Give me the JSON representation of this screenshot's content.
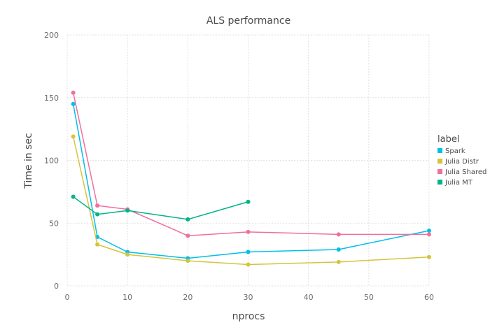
{
  "chart_data": {
    "type": "line",
    "title": "ALS performance",
    "xlabel": "nprocs",
    "ylabel": "Time in sec",
    "xlim": [
      0,
      60
    ],
    "ylim": [
      0,
      200
    ],
    "xticks": [
      0,
      10,
      20,
      30,
      40,
      50,
      60
    ],
    "yticks": [
      0,
      50,
      100,
      150,
      200
    ],
    "grid": true,
    "legend": {
      "title": "label",
      "position": "right"
    },
    "series": [
      {
        "name": "Spark",
        "color": "#00bfe8",
        "x": [
          1,
          5,
          10,
          20,
          30,
          45,
          60
        ],
        "values": [
          145,
          39,
          27,
          22,
          27,
          29,
          44
        ]
      },
      {
        "name": "Julia Distr",
        "color": "#d4c43c",
        "x": [
          1,
          5,
          10,
          20,
          30,
          45,
          60
        ],
        "values": [
          119,
          33,
          25,
          20,
          17,
          19,
          23
        ]
      },
      {
        "name": "Julia Shared",
        "color": "#f06ea0",
        "x": [
          1,
          5,
          10,
          20,
          30,
          45,
          60
        ],
        "values": [
          154,
          64,
          61,
          40,
          43,
          41,
          41
        ]
      },
      {
        "name": "Julia MT",
        "color": "#00b389",
        "x": [
          1,
          5,
          10,
          20,
          30
        ],
        "values": [
          71,
          57,
          60,
          53,
          67
        ]
      }
    ]
  }
}
